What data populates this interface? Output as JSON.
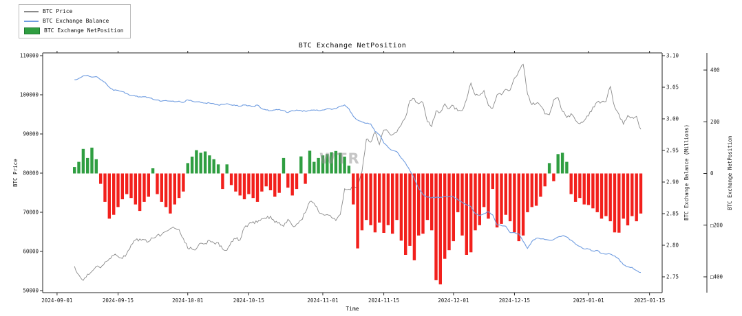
{
  "watermark": "WTR",
  "chart_data": {
    "type": "mixed",
    "title": "BTC Exchange NetPosition",
    "xlabel": "Time",
    "legend_position": "upper-left-outside",
    "grid": false,
    "x_axis": {
      "tick_labels": [
        "2024-09-01",
        "2024-09-15",
        "2024-10-01",
        "2024-10-15",
        "2024-11-01",
        "2024-11-15",
        "2024-12-01",
        "2024-12-15",
        "2025-01-01",
        "2025-01-15"
      ],
      "tick_days": [
        0,
        14,
        30,
        44,
        61,
        75,
        91,
        105,
        122,
        136
      ],
      "domain_days": [
        -3.3,
        138.9
      ]
    },
    "axes": {
      "price": {
        "label": "BTC Price",
        "domain": [
          50000,
          110000
        ],
        "ticks": [
          50000,
          60000,
          70000,
          80000,
          90000,
          100000,
          110000
        ],
        "tick_labels": [
          "50000",
          "60000",
          "70000",
          "80000",
          "90000",
          "100000",
          "110000"
        ]
      },
      "balance": {
        "label": "BTC Exchange Balance (Millions)",
        "domain": [
          2.75,
          3.1
        ],
        "ticks": [
          2.75,
          2.8,
          2.85,
          2.9,
          2.95,
          3.0,
          3.05,
          3.1
        ],
        "tick_labels": [
          "2.75",
          "2.80",
          "2.85",
          "2.90",
          "2.95",
          "3.00",
          "3.05",
          "3.10"
        ]
      },
      "netpos": {
        "label": "BTC Exchange NetPosition",
        "domain": [
          -400,
          400
        ],
        "tick_values": [
          400,
          200,
          0,
          -200,
          -400
        ],
        "tick_labels": [
          "400",
          "200",
          "0",
          "□200",
          "□400"
        ]
      }
    },
    "start_date": "2024-09-05",
    "start_day": 4,
    "series": [
      {
        "name": "BTC Price",
        "type": "line",
        "axis": "price",
        "color": "#8a8a8a",
        "values": [
          56200,
          54000,
          52600,
          54200,
          54900,
          56200,
          55800,
          57300,
          58100,
          59000,
          58700,
          58200,
          59500,
          61700,
          62900,
          63200,
          63000,
          62500,
          63400,
          64200,
          64300,
          65200,
          65800,
          65900,
          65600,
          63300,
          60800,
          60600,
          60700,
          62100,
          62000,
          62800,
          62200,
          62300,
          60600,
          60300,
          62500,
          63200,
          62900,
          66100,
          67000,
          67600,
          67400,
          68400,
          68400,
          69000,
          67400,
          67400,
          66400,
          68200,
          66600,
          67000,
          68000,
          69900,
          72700,
          72300,
          70200,
          69500,
          69400,
          68700,
          67900,
          69400,
          76000,
          75900,
          76500,
          76700,
          80400,
          88700,
          87900,
          90400,
          87300,
          91000,
          90600,
          89800,
          90500,
          92300,
          94300,
          98500,
          99000,
          97700,
          98000,
          93100,
          91900,
          95900,
          95600,
          97700,
          96400,
          97200,
          95900,
          96000,
          98800,
          103000,
          99900,
          99900,
          101100,
          97300,
          96600,
          100000,
          100000,
          101400,
          101200,
          104300,
          106100,
          107800,
          100200,
          97500,
          97800,
          97200,
          95100,
          94900,
          98700,
          99300,
          95800,
          94200,
          95200,
          93500,
          92600,
          93400,
          94600,
          96900,
          98200,
          98200,
          98300,
          102100,
          96900,
          95000,
          92500,
          94700,
          94300,
          94500,
          91200
        ]
      },
      {
        "name": "BTC Exchange Balance",
        "type": "line",
        "axis": "balance",
        "color": "#6f9ce0",
        "values": [
          3.062,
          3.064,
          3.068,
          3.069,
          3.066,
          3.067,
          3.062,
          3.058,
          3.05,
          3.045,
          3.045,
          3.043,
          3.04,
          3.037,
          3.036,
          3.035,
          3.035,
          3.034,
          3.031,
          3.03,
          3.028,
          3.029,
          3.028,
          3.027,
          3.028,
          3.026,
          3.03,
          3.028,
          3.027,
          3.026,
          3.025,
          3.025,
          3.024,
          3.022,
          3.023,
          3.024,
          3.022,
          3.021,
          3.02,
          3.022,
          3.021,
          3.019,
          3.022,
          3.016,
          3.014,
          3.013,
          3.014,
          3.015,
          3.013,
          3.01,
          3.013,
          3.014,
          3.013,
          3.012,
          3.013,
          3.014,
          3.013,
          3.014,
          3.016,
          3.015,
          3.016,
          3.02,
          3.022,
          3.016,
          3.004,
          2.998,
          2.995,
          2.993,
          2.992,
          2.98,
          2.975,
          2.962,
          2.955,
          2.95,
          2.948,
          2.938,
          2.93,
          2.918,
          2.906,
          2.89,
          2.88,
          2.876,
          2.875,
          2.876,
          2.876,
          2.877,
          2.877,
          2.877,
          2.872,
          2.868,
          2.864,
          2.861,
          2.85,
          2.847,
          2.85,
          2.853,
          2.848,
          2.832,
          2.831,
          2.83,
          2.82,
          2.82,
          2.818,
          2.806,
          2.795,
          2.806,
          2.811,
          2.81,
          2.809,
          2.808,
          2.809,
          2.813,
          2.815,
          2.813,
          2.808,
          2.802,
          2.798,
          2.794,
          2.794,
          2.791,
          2.792,
          2.787,
          2.786,
          2.786,
          2.783,
          2.778,
          2.769,
          2.766,
          2.765,
          2.76,
          2.757
        ]
      },
      {
        "name": "BTC Exchange NetPosition",
        "type": "bar",
        "axis": "netpos",
        "color_positive": "#2f9e41",
        "color_negative": "#f2201c",
        "values": [
          25,
          45,
          95,
          60,
          100,
          55,
          -40,
          -110,
          -175,
          -160,
          -130,
          -100,
          -80,
          -95,
          -120,
          -145,
          -110,
          -90,
          20,
          -80,
          -110,
          -130,
          -155,
          -120,
          -95,
          -70,
          40,
          65,
          90,
          80,
          85,
          70,
          55,
          35,
          -60,
          35,
          -45,
          -70,
          -85,
          -100,
          -80,
          -95,
          -110,
          -70,
          -50,
          -65,
          -90,
          -75,
          60,
          -55,
          -85,
          -60,
          66,
          -40,
          88,
          45,
          60,
          70,
          75,
          82,
          87,
          80,
          65,
          30,
          -120,
          -290,
          -220,
          -180,
          -200,
          -228,
          -190,
          -230,
          -200,
          -233,
          -180,
          -260,
          -315,
          -280,
          -336,
          -240,
          -233,
          -180,
          -220,
          -413,
          -429,
          -330,
          -297,
          -262,
          -150,
          -240,
          -315,
          -305,
          -220,
          -200,
          -130,
          -175,
          -60,
          -209,
          -195,
          -160,
          -185,
          -228,
          -262,
          -240,
          -150,
          -130,
          -125,
          -90,
          -50,
          40,
          -30,
          75,
          80,
          45,
          -80,
          -110,
          -95,
          -120,
          -122,
          -135,
          -150,
          -175,
          -165,
          -185,
          -228,
          -229,
          -175,
          -201,
          -165,
          -185,
          -155
        ]
      }
    ]
  }
}
